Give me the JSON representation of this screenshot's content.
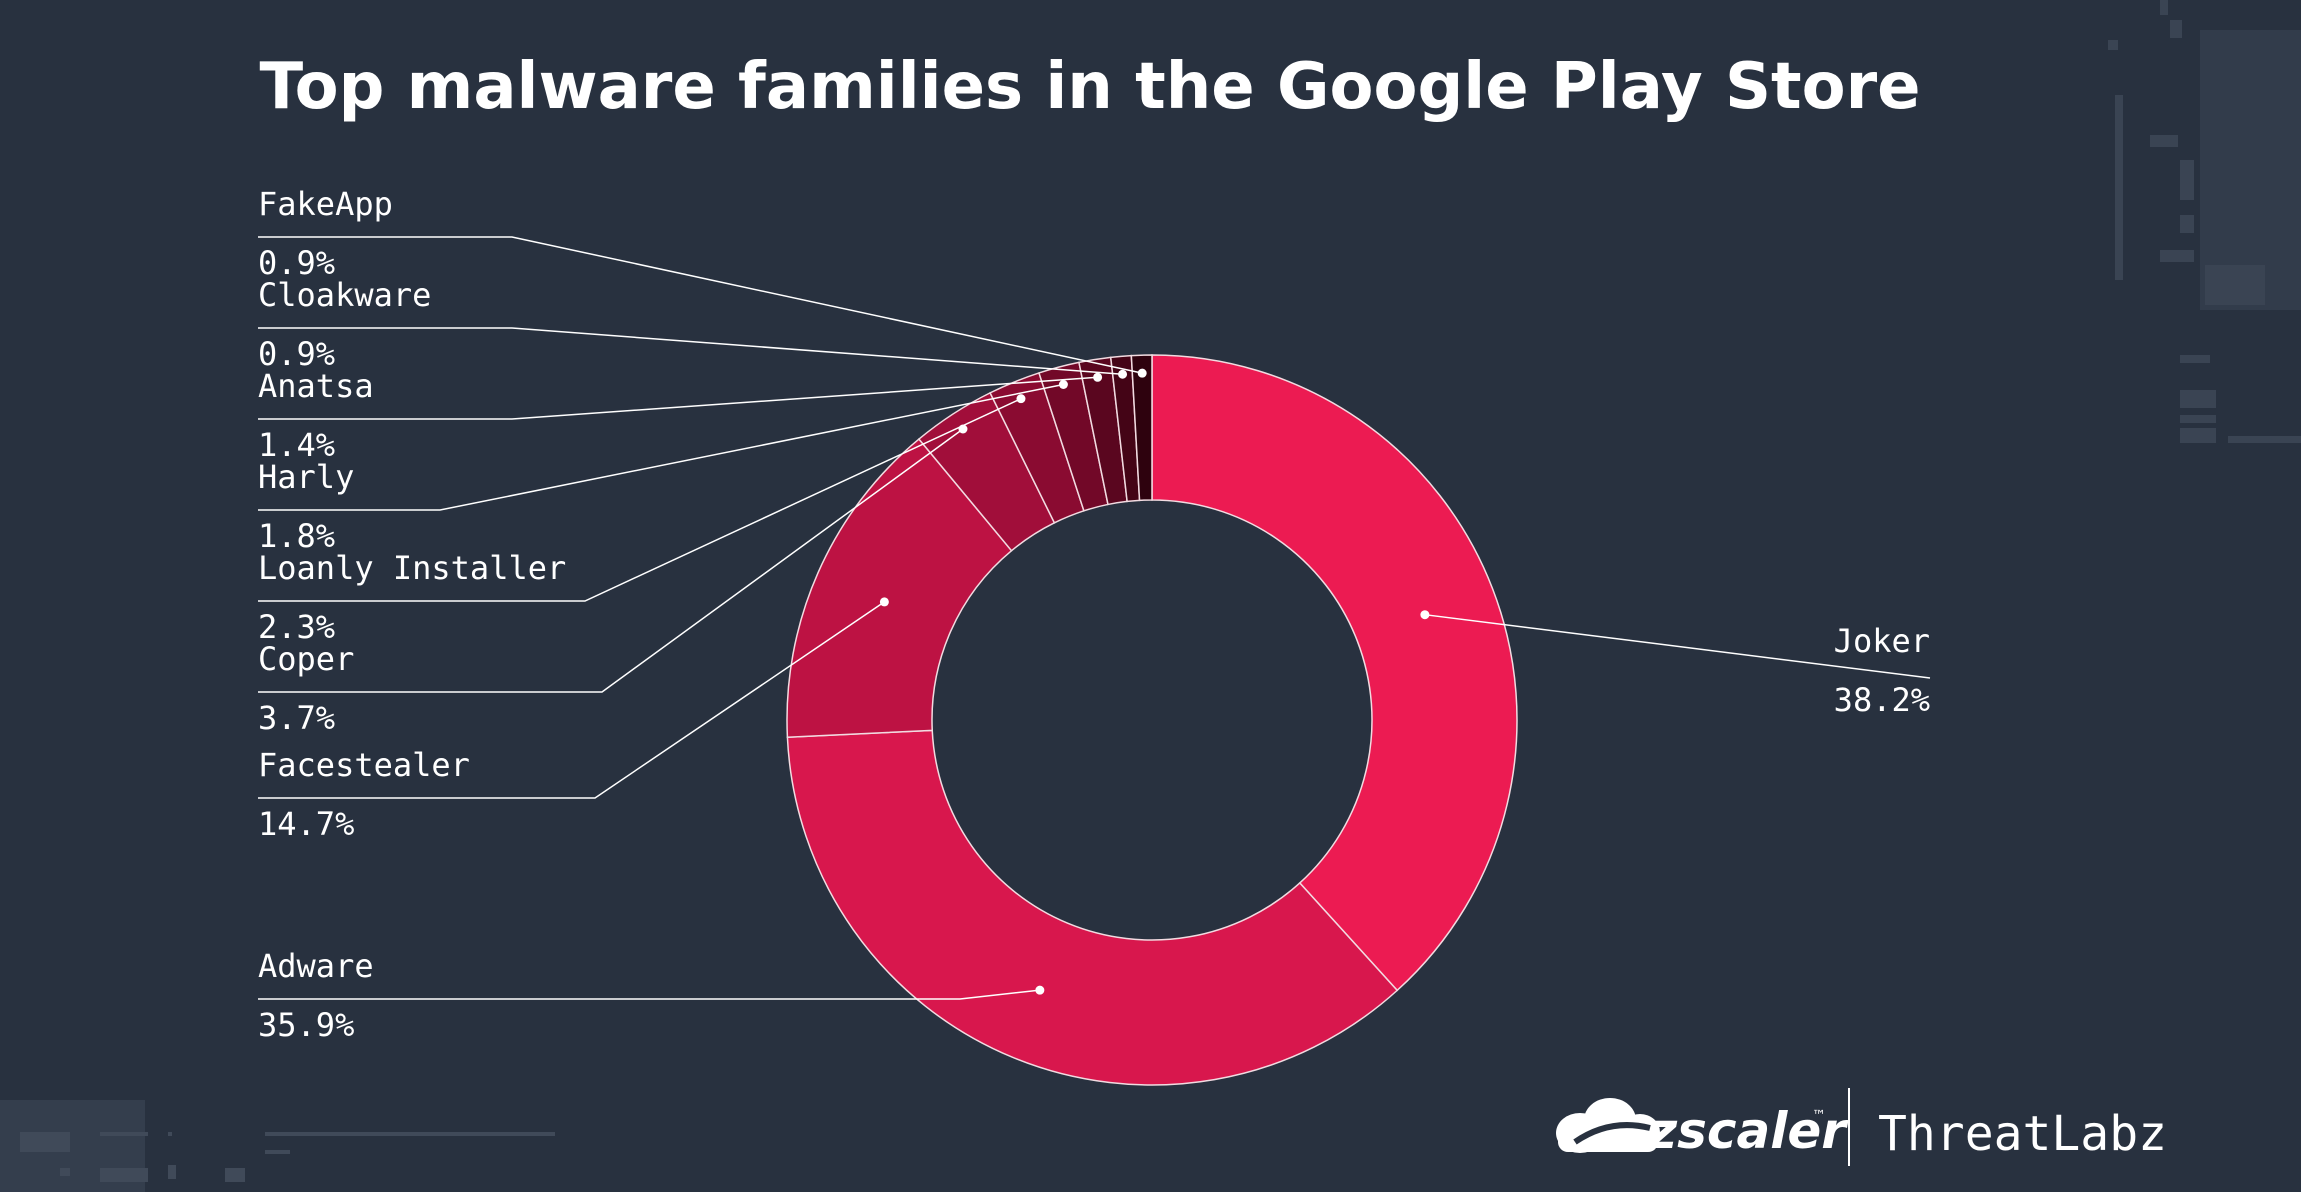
{
  "chart_data": {
    "type": "pie",
    "variant": "donut",
    "title": "Top malware families in the Google Play Store",
    "slices": [
      {
        "label": "Joker",
        "percent_label": "38.2%",
        "value": 38.2,
        "color": "#ec1b52"
      },
      {
        "label": "Adware",
        "percent_label": "35.9%",
        "value": 35.9,
        "color": "#d8174d"
      },
      {
        "label": "Facestealer",
        "percent_label": "14.7%",
        "value": 14.7,
        "color": "#bd1243"
      },
      {
        "label": "Coper",
        "percent_label": "3.7%",
        "value": 3.7,
        "color": "#a10e3a"
      },
      {
        "label": "Loanly Installer",
        "percent_label": "2.3%",
        "value": 2.3,
        "color": "#8a0b31"
      },
      {
        "label": "Harly",
        "percent_label": "1.8%",
        "value": 1.8,
        "color": "#720828"
      },
      {
        "label": "Anatsa",
        "percent_label": "1.4%",
        "value": 1.4,
        "color": "#5a061f"
      },
      {
        "label": "Cloakware",
        "percent_label": "0.9%",
        "value": 0.9,
        "color": "#440416"
      },
      {
        "label": "FakeApp",
        "percent_label": "0.9%",
        "value": 0.9,
        "color": "#2e020e"
      }
    ],
    "legend": "none"
  },
  "colors": {
    "background": "#28313f",
    "leader_line": "#ffffff",
    "text": "#ffffff"
  },
  "footer": {
    "logo_text": "zscaler",
    "trademark": "™",
    "brand_text": "ThreatLabz",
    "logo_icon": "cloud-icon"
  }
}
